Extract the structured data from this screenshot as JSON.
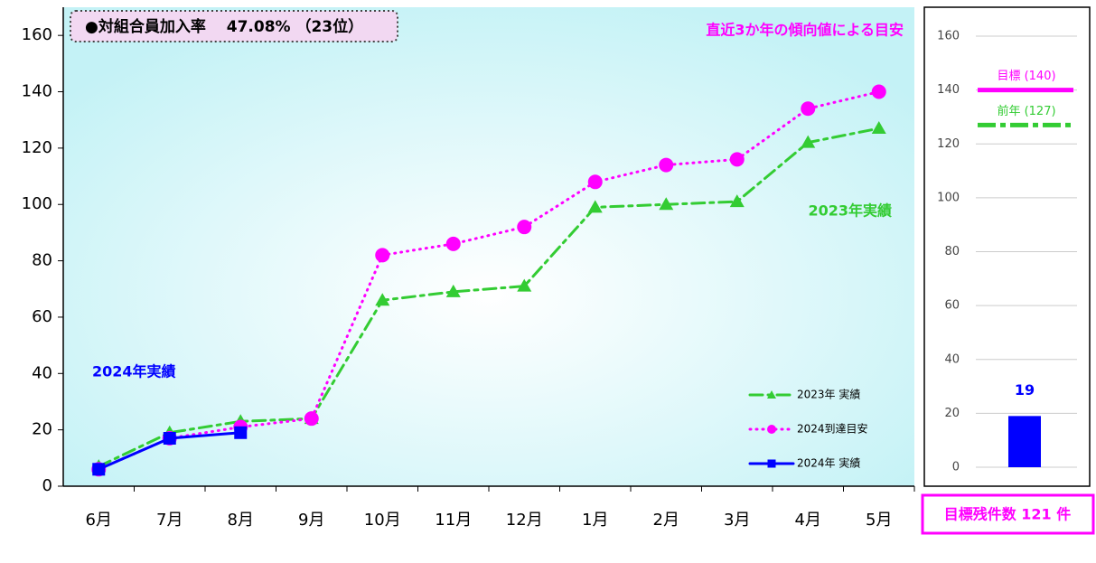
{
  "chart_data": [
    {
      "type": "line",
      "badge": "●対組合員加入率　 47.08% （23位）",
      "note": "直近3か年の傾向値による目安",
      "annotations": [
        "2023年実績",
        "2024年実績"
      ],
      "categories": [
        "6月",
        "7月",
        "8月",
        "9月",
        "10月",
        "11月",
        "12月",
        "1月",
        "2月",
        "3月",
        "4月",
        "5月"
      ],
      "series": [
        {
          "name": "2023年  実績",
          "color": "#33cc33",
          "marker": "triangle",
          "style": "dashdot",
          "values": [
            7,
            19,
            23,
            24,
            66,
            69,
            71,
            99,
            100,
            101,
            122,
            127
          ]
        },
        {
          "name": "2024到達目安",
          "color": "#ff00ff",
          "marker": "circle",
          "style": "dotted",
          "values": [
            6,
            17,
            21,
            24,
            82,
            86,
            92,
            108,
            114,
            116,
            134,
            140
          ]
        },
        {
          "name": "2024年  実績",
          "color": "#0000ff",
          "marker": "square",
          "style": "solid",
          "values": [
            6,
            17,
            19,
            null,
            null,
            null,
            null,
            null,
            null,
            null,
            null,
            null
          ]
        }
      ],
      "ylim": [
        0,
        170
      ],
      "yticks": [
        0,
        20,
        40,
        60,
        80,
        100,
        120,
        140,
        160
      ],
      "legend": "lower right"
    },
    {
      "type": "bar",
      "values": [
        19
      ],
      "color": "#0000ff",
      "ylim": [
        0,
        160
      ],
      "yticks": [
        0,
        20,
        40,
        60,
        80,
        100,
        120,
        140,
        160
      ],
      "grid": true,
      "reference_lines": [
        {
          "label": "目標 (140)",
          "value": 140,
          "color": "#ff00ff",
          "style": "solid"
        },
        {
          "label": "前年 (127)",
          "value": 127,
          "color": "#33cc33",
          "style": "dashdot"
        }
      ],
      "note": "目標残件数 121 件"
    }
  ]
}
